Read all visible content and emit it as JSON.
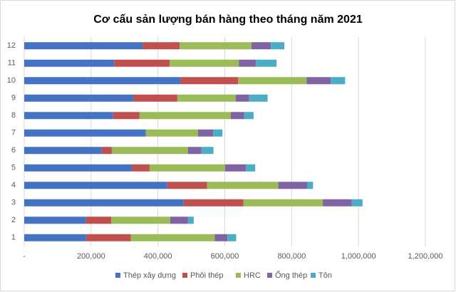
{
  "chart_data": {
    "type": "stacked-bar-horizontal",
    "title": "Cơ cấu sản lượng bán hàng theo tháng năm 2021",
    "categories": [
      "1",
      "2",
      "3",
      "4",
      "5",
      "6",
      "7",
      "8",
      "9",
      "10",
      "11",
      "12"
    ],
    "series": [
      {
        "name": "Thép xây dựng",
        "color": "#4472c4",
        "values": [
          185000,
          185000,
          477000,
          428000,
          322000,
          232000,
          364000,
          266000,
          326000,
          467000,
          269000,
          354000
        ]
      },
      {
        "name": "Phôi thép",
        "color": "#c0504d",
        "values": [
          134000,
          75000,
          179000,
          119000,
          53000,
          30000,
          0,
          79000,
          132000,
          173000,
          166000,
          111000
        ]
      },
      {
        "name": "HRC",
        "color": "#9bbb59",
        "values": [
          251000,
          177000,
          237000,
          213000,
          226000,
          228000,
          156000,
          273000,
          175000,
          205000,
          207000,
          215000
        ]
      },
      {
        "name": "Ống thép",
        "color": "#8064a2",
        "values": [
          38000,
          53000,
          87000,
          87000,
          62000,
          40000,
          45000,
          40000,
          40000,
          72000,
          51000,
          58000
        ]
      },
      {
        "name": "Tôn",
        "color": "#4bacc6",
        "values": [
          26000,
          17000,
          32000,
          17000,
          28000,
          36000,
          28000,
          28000,
          55000,
          43000,
          62000,
          40000
        ]
      }
    ],
    "xlim": [
      0,
      1200000
    ],
    "xticks": [
      {
        "value": 0,
        "label": "-"
      },
      {
        "value": 200000,
        "label": "200,000"
      },
      {
        "value": 400000,
        "label": "400,000"
      },
      {
        "value": 600000,
        "label": "600,000"
      },
      {
        "value": 800000,
        "label": "800,000"
      },
      {
        "value": 1000000,
        "label": "1,000,000"
      },
      {
        "value": 1200000,
        "label": "1,200,000"
      }
    ],
    "grid": true,
    "legend": "bottom"
  }
}
